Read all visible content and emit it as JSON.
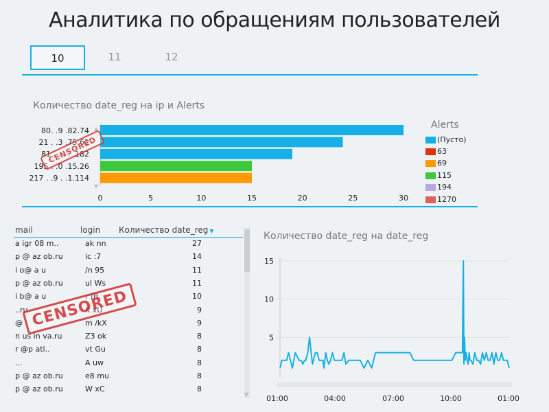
{
  "page": {
    "title": "Аналитика по обращениям пользователей"
  },
  "tabs": [
    {
      "label": "10",
      "active": true
    },
    {
      "label": "11",
      "active": false
    },
    {
      "label": "12",
      "active": false
    }
  ],
  "bar_chart": {
    "title": "Количество date_reg на ip и Alerts",
    "ip_labels": [
      "80.  .9 .82.74",
      "21 .  .3  .75.62",
      "81 . . . . .182",
      "195 .  .0 .15.26",
      "217 .  .9 . .1.114"
    ],
    "legend_title": "Alerts",
    "legend": [
      {
        "label": "(Пусто)",
        "color": "#17b0e6"
      },
      {
        "label": "63",
        "color": "#e0300c"
      },
      {
        "label": "69",
        "color": "#fd9a00"
      },
      {
        "label": "115",
        "color": "#3ec93a"
      },
      {
        "label": "194",
        "color": "#b9a9e0"
      },
      {
        "label": "1270",
        "color": "#e06060"
      }
    ],
    "stamp_text": "CENSORED"
  },
  "chart_data": [
    {
      "type": "bar",
      "orientation": "horizontal",
      "title": "Количество date_reg на ip и Alerts",
      "categories": [
        "80.  .9 .82.74",
        "21 .  .3  .75.62",
        "81 . . . . .182",
        "195 .  .0 .15.26",
        "217 .  .9 . .1.114"
      ],
      "values": [
        30,
        24,
        19,
        15,
        15
      ],
      "colors": [
        "#17b0e6",
        "#17b0e6",
        "#17b0e6",
        "#3ec93a",
        "#fd9a00"
      ],
      "xlim": [
        0,
        30
      ],
      "xticks": [
        0,
        5,
        10,
        15,
        20,
        25,
        30
      ],
      "legend_title": "Alerts",
      "legend_position": "right",
      "grid": false
    },
    {
      "type": "line",
      "title": "Количество date_reg на date_reg",
      "xlabels": [
        "01:00",
        "04:00",
        "07:00",
        "10:00",
        "01:00"
      ],
      "yticks": [
        5,
        10,
        15
      ],
      "ylim": [
        0,
        15
      ],
      "grid": true,
      "series": [
        {
          "color": "#17b0e6",
          "x": [
            0.0,
            0.05,
            0.1,
            0.18,
            0.25,
            0.35,
            0.45,
            0.55,
            0.65,
            0.8,
            1.0,
            1.1,
            1.2,
            1.28,
            1.35,
            1.45,
            1.55,
            1.7,
            1.85,
            1.95,
            2.05,
            2.15,
            2.25,
            2.3,
            2.4,
            2.48,
            2.55,
            2.65,
            2.75,
            2.85,
            2.95,
            3.05,
            3.15,
            3.25,
            3.35,
            3.45,
            3.6,
            3.7,
            3.8,
            3.9,
            4.0,
            4.2,
            4.4,
            4.6,
            4.8,
            5.0,
            5.2,
            5.4,
            5.5,
            5.6,
            5.7,
            5.8,
            5.9,
            6.0,
            6.2,
            6.4,
            6.6,
            6.8,
            7.0,
            7.2,
            7.4,
            7.6,
            7.8,
            8.0,
            8.2,
            8.4,
            8.6,
            8.8,
            9.0,
            9.2,
            9.4,
            9.55,
            9.6,
            9.63,
            9.66,
            9.7,
            9.75,
            9.8,
            9.85,
            9.9,
            9.95,
            10.0,
            10.1,
            10.2,
            10.3,
            10.4,
            10.5,
            10.6,
            10.7,
            10.8,
            10.9,
            11.0,
            11.1,
            11.2,
            11.3,
            11.4,
            11.5,
            11.6,
            11.7,
            11.8,
            11.9,
            12.0
          ],
          "y": [
            1,
            1.5,
            2,
            2,
            2,
            2,
            3,
            2,
            1,
            3,
            2,
            2,
            1.5,
            2,
            2,
            3,
            5,
            1.5,
            3,
            3,
            2,
            2,
            2,
            1,
            3,
            2,
            1.5,
            2,
            3,
            2,
            2,
            2,
            2,
            2,
            3,
            1.5,
            2,
            2,
            2,
            2,
            2,
            2,
            1,
            2,
            1,
            3,
            3,
            3,
            3,
            3,
            3,
            3,
            3,
            3,
            3,
            3,
            3,
            3,
            2,
            2,
            2,
            2,
            2,
            2,
            2,
            2,
            2,
            2,
            2,
            3,
            3,
            3,
            15,
            1.5,
            5,
            2,
            3,
            2,
            1.5,
            3,
            2,
            2,
            1.5,
            3,
            2,
            2,
            1.5,
            3,
            2,
            3,
            2,
            2,
            3,
            1.5,
            3,
            2,
            2,
            3,
            2,
            2,
            2,
            1
          ]
        }
      ]
    }
  ],
  "table": {
    "headers": {
      "mail": "mail",
      "login": "login",
      "count": "Количество date_reg"
    },
    "sort_icon": "sort-desc-triangle",
    "stamp_text": "CENSORED",
    "rows": [
      {
        "mail": "a  igr    08     m..  ",
        "login": "ak    nn",
        "count": "27"
      },
      {
        "mail": "p     @  az     ob.ru",
        "login": "ic  :7",
        "count": "14"
      },
      {
        "mail": "i  o@      a  u     ",
        "login": "/n   95",
        "count": "11"
      },
      {
        "mail": "p     @  az     ob.ru",
        "login": "ul    Ws",
        "count": "11"
      },
      {
        "mail": "i  b@      a  u     ",
        "login": "r    fB",
        "count": "10"
      },
      {
        "mail": "              ..ru",
        "login": "K    xU",
        "count": "9"
      },
      {
        "mail": "              @    ",
        "login": "m   /kX",
        "count": "9"
      },
      {
        "mail": "n  us    in    va.ru",
        "login": "Z3    ok",
        "count": "8"
      },
      {
        "mail": "r    @p    ati..  ",
        "login": "vt    Gu",
        "count": "8"
      },
      {
        "mail": "              ...",
        "login": "A    uw",
        "count": "8"
      },
      {
        "mail": "p     @  az     ob.ru",
        "login": "e8    mu",
        "count": "8"
      },
      {
        "mail": "p     @  az     ob.ru",
        "login": "W    xC",
        "count": "8"
      }
    ]
  }
}
